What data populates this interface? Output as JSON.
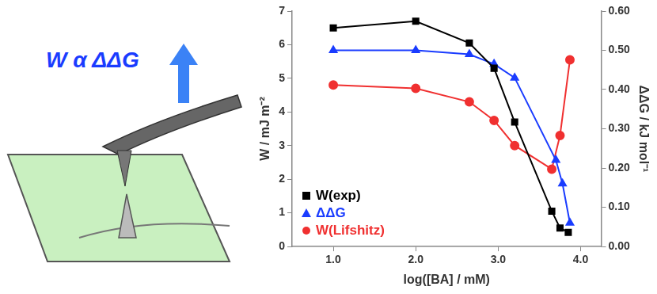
{
  "chart_data": {
    "type": "line",
    "annotations": [
      "W α ΔΔG"
    ],
    "x_label": "log([BA] / mM)",
    "y_label": "W / mJ m⁻²",
    "y2_label": "ΔΔG / kJ mol⁻¹",
    "xlim": [
      0.5,
      4.25
    ],
    "xticks": [
      {
        "value": 1,
        "label": "1.0"
      },
      {
        "value": 2,
        "label": "2.0"
      },
      {
        "value": 3,
        "label": "3.0"
      },
      {
        "value": 4,
        "label": "4.0"
      }
    ],
    "ylim": [
      0,
      7
    ],
    "yticks": [
      0,
      1,
      2,
      3,
      4,
      5,
      6,
      7
    ],
    "y2lim": [
      0,
      0.6
    ],
    "y2ticks": [
      {
        "value": 0,
        "label": "0.00"
      },
      {
        "value": 0.1,
        "label": "0.10"
      },
      {
        "value": 0.2,
        "label": "0.20"
      },
      {
        "value": 0.3,
        "label": "0.30"
      },
      {
        "value": 0.4,
        "label": "0.40"
      },
      {
        "value": 0.5,
        "label": "0.50"
      },
      {
        "value": 0.6,
        "label": "0.60"
      }
    ],
    "grid": false,
    "legend": "lower left",
    "series": [
      {
        "name": "W(exp)",
        "color": "#000000",
        "marker": "square",
        "x": [
          1.0,
          2.0,
          2.65,
          2.95,
          3.2,
          3.65,
          3.75,
          3.85
        ],
        "values": [
          6.5,
          6.7,
          6.05,
          5.3,
          3.7,
          1.05,
          0.55,
          0.42
        ]
      },
      {
        "name": "ΔΔG",
        "color": "#1a3cff",
        "marker": "triangle",
        "axis": "y2",
        "x": [
          1.0,
          2.0,
          2.65,
          2.95,
          3.2,
          3.7,
          3.78,
          3.87
        ],
        "values": [
          0.5,
          0.5,
          0.49,
          0.465,
          0.43,
          0.22,
          0.16,
          0.06
        ]
      },
      {
        "name": "W(Lifshitz)",
        "color": "#f03030",
        "marker": "circle",
        "x": [
          1.0,
          2.0,
          2.65,
          2.95,
          3.2,
          3.65,
          3.75,
          3.87
        ],
        "values": [
          4.8,
          4.7,
          4.3,
          3.75,
          3.0,
          2.3,
          3.3,
          5.55
        ]
      }
    ]
  }
}
